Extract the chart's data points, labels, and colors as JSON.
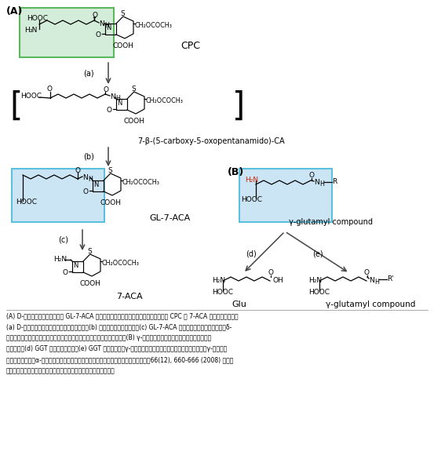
{
  "bg_color": "#ffffff",
  "green_box_color": "#d4edda",
  "green_box_edge": "#5cb85c",
  "blue_box_color": "#cce5f5",
  "blue_box_edge": "#5bc0de",
  "red_color": "#cc2200",
  "black": "#000000",
  "gray": "#444444",
  "title_A": "(A)",
  "title_B": "(B)",
  "label_a": "(a)",
  "label_b": "(b)",
  "label_c": "(c)",
  "label_d": "(d)",
  "label_e": "(e)",
  "cpc_label": "CPC",
  "compound1_label": "7-β-(5-carboxy-5-oxopentanamido)-CA",
  "compound2_label": "GL-7-ACA",
  "compound3_label": "7-ACA",
  "compound4_label": "γ-glutamyl compound",
  "compound5_label": "Glu",
  "compound6_label": "γ-glutamyl compound",
  "caption": "(A) D-アミノ酸オキシダーゼと GL-7-ACA アシラーゼを連続的に反応させることにより CPC を 7-ACA に変換する工程．\n(a) D-アミノ酸オキシダーゼが触媒する反応．(b) 自動的に進行する反応．(c) GL-7-ACA アシラーゼが触媒する反応．δ-\nアミノアジピル基を緑色の四角、グルタリル基を青色の四角で示した。　(B) γ-グルタミルトランスペプチダーゼの触媒す\nる反応．　(d) GGT の加水分解反応．(e) GGT の転移反応．γ-グルタミル基を青色の四角で、グルタリル基とγ-グルタミ\nル基の違いであるα-アミノ基を赤字で示した。（バイオサイエンスとインダストリー，66(12), 660-666 (2008) に掲載\nされた論文中の図をバイオインダストリー協会の許可を得て使用）"
}
